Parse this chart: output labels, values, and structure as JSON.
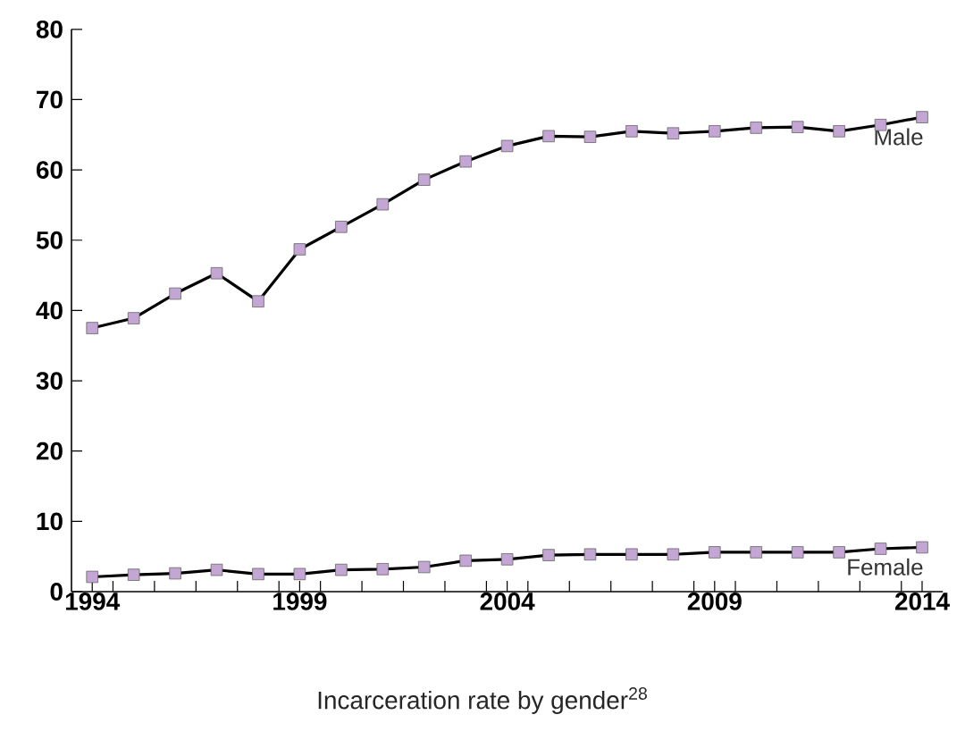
{
  "chart_data": {
    "type": "line",
    "title": "Incarceration rate by gender$^{28}$",
    "x": [
      1994,
      1995,
      1996,
      1997,
      1998,
      1999,
      2000,
      2001,
      2002,
      2003,
      2004,
      2005,
      2006,
      2007,
      2008,
      2009,
      2010,
      2011,
      2012,
      2013,
      2014
    ],
    "series": [
      {
        "name": "Male",
        "color": "#c3a6d3",
        "values": [
          37.5,
          38.9,
          42.4,
          45.3,
          41.3,
          48.7,
          51.9,
          55.1,
          58.6,
          61.2,
          63.4,
          64.8,
          64.7,
          65.5,
          65.2,
          65.5,
          66.0,
          66.1,
          65.5,
          66.4,
          67.5
        ]
      },
      {
        "name": "Female",
        "color": "#c3a6d3",
        "values": [
          2.1,
          2.4,
          2.6,
          3.1,
          2.5,
          2.5,
          3.1,
          3.2,
          3.5,
          4.4,
          4.6,
          5.2,
          5.3,
          5.3,
          5.3,
          5.6,
          5.6,
          5.6,
          5.6,
          6.1,
          6.3
        ]
      }
    ],
    "xlim": [
      1993.5,
      2014.5
    ],
    "xticks": [
      1994,
      1999,
      2004,
      2009,
      2014,
      {
        "value": 1994.5,
        "label": null
      },
      {
        "value": 1995.5,
        "label": null
      },
      {
        "value": 1996.5,
        "label": null
      },
      {
        "value": 1997.5,
        "label": null
      },
      {
        "value": 1998.5,
        "label": null
      },
      {
        "value": 1999.5,
        "label": null
      },
      {
        "value": 2000.5,
        "label": null
      },
      {
        "value": 2001.5,
        "label": null
      },
      {
        "value": 2002.5,
        "label": null
      },
      {
        "value": 2003.5,
        "label": null
      },
      {
        "value": 2004.5,
        "label": null
      },
      {
        "value": 2005.5,
        "label": null
      },
      {
        "value": 2006.5,
        "label": null
      },
      {
        "value": 2007.5,
        "label": null
      },
      {
        "value": 2008.5,
        "label": null
      },
      {
        "value": 2009.5,
        "label": null
      },
      {
        "value": 2010.5,
        "label": null
      },
      {
        "value": 2011.5,
        "label": null
      },
      {
        "value": 2012.5,
        "label": null
      },
      {
        "value": 2013.5,
        "label": null
      }
    ],
    "ylim": [
      0,
      80
    ],
    "yticks": [
      0,
      10,
      20,
      30,
      40,
      50,
      60,
      70,
      80
    ],
    "grid": false,
    "marker": "square",
    "line_style": "solid"
  }
}
